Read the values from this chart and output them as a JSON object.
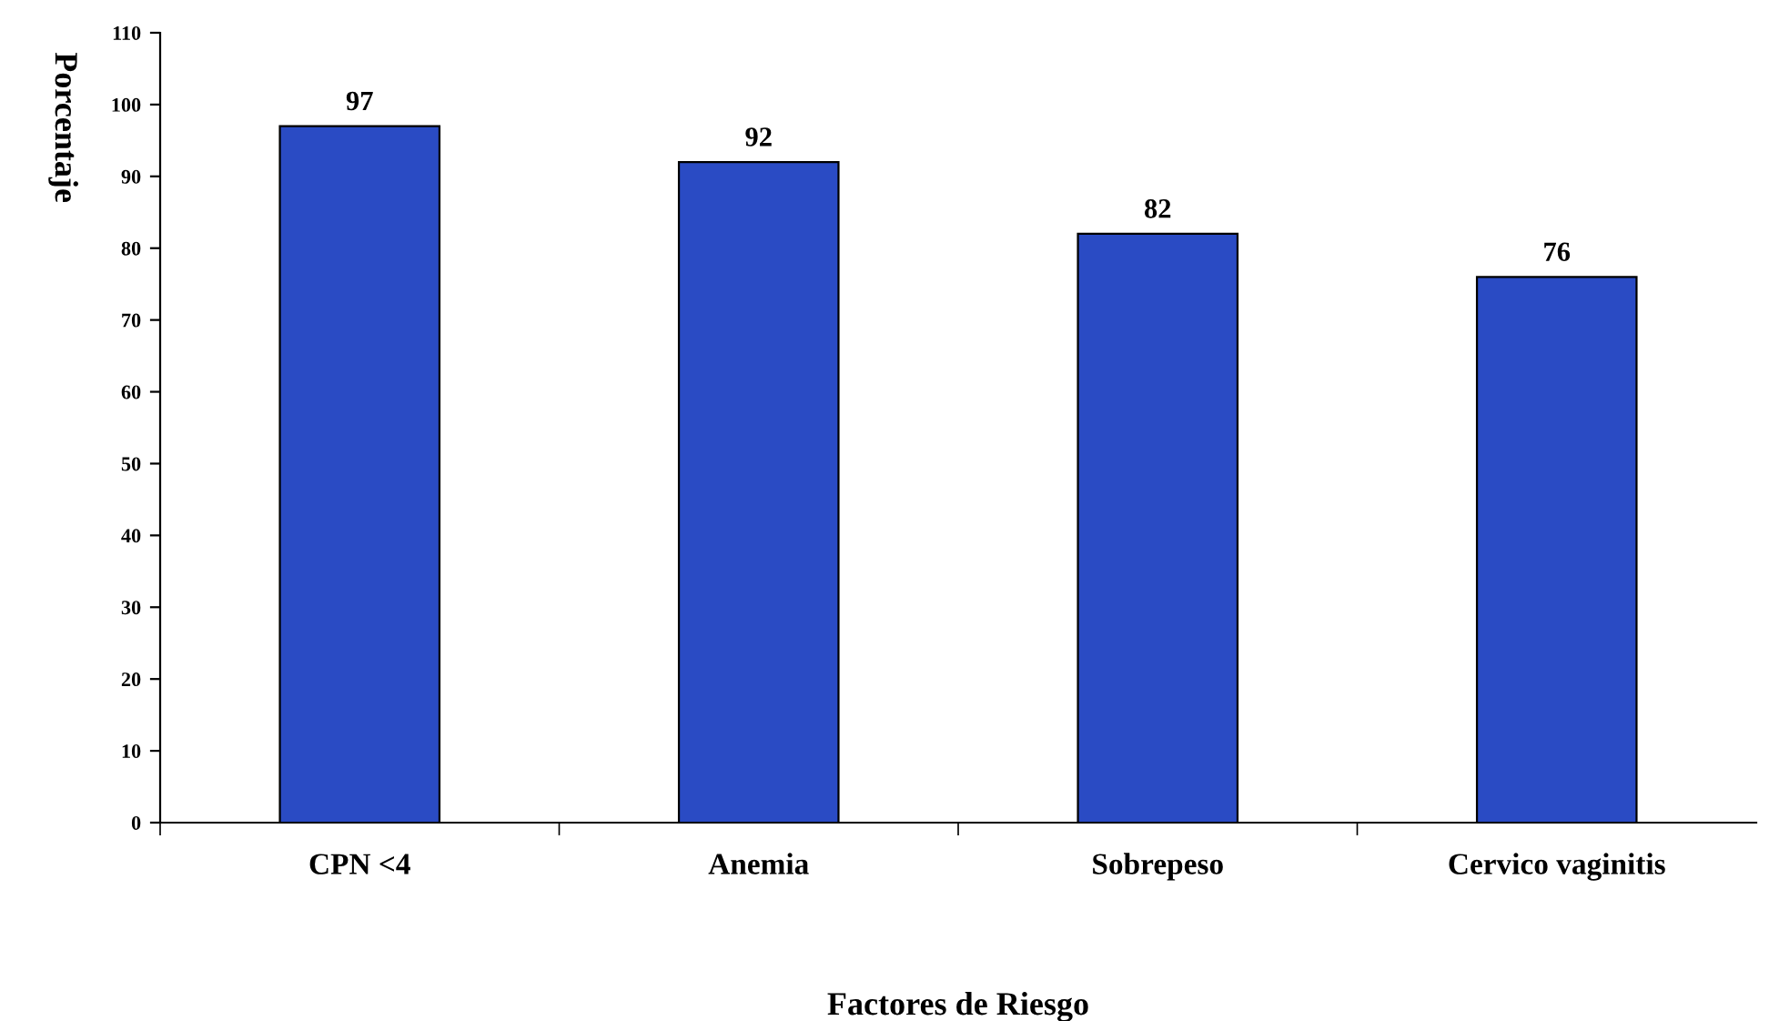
{
  "chart_data": {
    "type": "bar",
    "xlabel": "Factores de Riesgo",
    "ylabel": "Porcentaje",
    "categories": [
      "CPN <4",
      "Anemia",
      "Sobrepeso",
      "Cervico vaginitis"
    ],
    "values": [
      97,
      92,
      82,
      76
    ],
    "color": "#2a4bc4",
    "ylim": [
      0,
      110
    ],
    "yticks": [
      0,
      10,
      20,
      30,
      40,
      50,
      60,
      70,
      80,
      90,
      100,
      110
    ],
    "data_labels": true,
    "grid": false,
    "legend": false
  }
}
